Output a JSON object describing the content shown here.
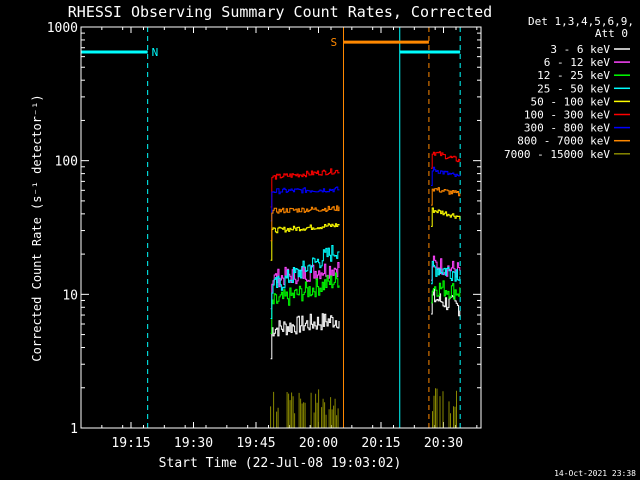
{
  "chart_data": {
    "type": "line",
    "title": "RHESSI Observing Summary Count Rates, Corrected",
    "xlabel": "Start Time (22-Jul-08 19:03:02)",
    "ylabel": "Corrected Count Rate (s⁻¹ detector⁻¹)",
    "yscale": "log",
    "ylim": [
      1,
      1000
    ],
    "xlim_minutes": [
      0,
      96
    ],
    "x_ticks": [
      {
        "label": "19:15",
        "minute": 12
      },
      {
        "label": "19:30",
        "minute": 27
      },
      {
        "label": "19:45",
        "minute": 42
      },
      {
        "label": "20:00",
        "minute": 57
      },
      {
        "label": "20:15",
        "minute": 72
      },
      {
        "label": "20:30",
        "minute": 87
      }
    ],
    "y_ticks": [
      {
        "label": "1",
        "value": 1
      },
      {
        "label": "10",
        "value": 10
      },
      {
        "label": "100",
        "value": 100
      },
      {
        "label": "1000",
        "value": 1000
      }
    ],
    "legend_header": [
      "Det 1,3,4,5,6,9,",
      "Att 0"
    ],
    "legend_position": "right",
    "series": [
      {
        "name": "3 - 6 keV",
        "color": "#ffffff",
        "seg1": [
          5.5,
          6.5
        ],
        "seg2": [
          9.5,
          8.0
        ]
      },
      {
        "name": "6 - 12 keV",
        "color": "#ff44ff",
        "seg1": [
          13.0,
          16.0
        ],
        "seg2": [
          17.0,
          15.0
        ]
      },
      {
        "name": "12 - 25 keV",
        "color": "#00ff00",
        "seg1": [
          8.5,
          13.0
        ],
        "seg2": [
          11.5,
          10.5
        ]
      },
      {
        "name": "25 - 50 keV",
        "color": "#00ffff",
        "seg1": [
          11.0,
          22.0
        ],
        "seg2": [
          16.0,
          14.5
        ]
      },
      {
        "name": "50 - 100 keV",
        "color": "#ffff00",
        "seg1": [
          30.0,
          33.0
        ],
        "seg2": [
          43.0,
          38.0
        ]
      },
      {
        "name": "100 - 300 keV",
        "color": "#ff0000",
        "seg1": [
          75.0,
          84.0
        ],
        "seg2": [
          117.0,
          100.0
        ]
      },
      {
        "name": "300 - 800 keV",
        "color": "#0000ff",
        "seg1": [
          59.0,
          61.0
        ],
        "seg2": [
          87.0,
          75.0
        ]
      },
      {
        "name": "800 - 7000 keV",
        "color": "#ff8800",
        "seg1": [
          42.0,
          44.0
        ],
        "seg2": [
          62.0,
          56.0
        ]
      },
      {
        "name": "7000 - 15000 keV",
        "color": "#888800",
        "seg1": [
          1.0,
          1.0
        ],
        "seg2": [
          1.0,
          1.0
        ]
      }
    ],
    "data_segments_minutes": [
      [
        45.5,
        62.0
      ],
      [
        84.0,
        91.0
      ]
    ],
    "night_intervals_minutes": [
      [
        -4.0,
        16.0
      ],
      [
        76.5,
        91.0
      ]
    ],
    "night_label": "N",
    "saa_interval_minutes": [
      63.0,
      83.5
    ],
    "saa_label": "S",
    "night_level": 650,
    "saa_level": 770,
    "colors": {
      "night": "#00ffff",
      "saa": "#ff8800",
      "axes": "#ffffff",
      "background": "#000000"
    }
  },
  "footer_timestamp": "14-Oct-2021 23:38"
}
